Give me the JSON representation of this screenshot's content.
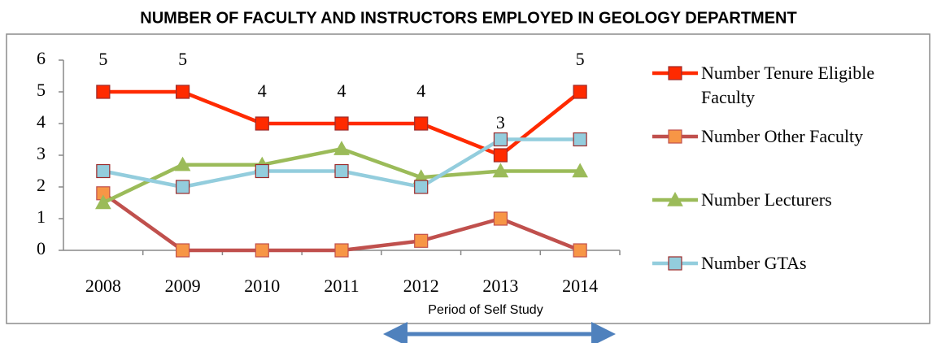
{
  "chart_data": {
    "type": "line",
    "title": "NUMBER OF FACULTY AND INSTRUCTORS EMPLOYED IN GEOLOGY DEPARTMENT",
    "categories": [
      "2008",
      "2009",
      "2010",
      "2011",
      "2012",
      "2013",
      "2014"
    ],
    "series": [
      {
        "name": "Number Tenure Eligible Faculty",
        "color": "#ff2a00",
        "marker": "square",
        "marker_color": "#ff2a00",
        "values": [
          5,
          5,
          4,
          4,
          4,
          3,
          5
        ],
        "data_labels": true
      },
      {
        "name": "Number Other Faculty",
        "color": "#c0504d",
        "marker": "square",
        "marker_color": "#f79646",
        "values": [
          1.8,
          0,
          0,
          0,
          0.3,
          1,
          0
        ]
      },
      {
        "name": "Number Lecturers",
        "color": "#9bbb59",
        "marker": "triangle",
        "marker_color": "#9bbb59",
        "values": [
          1.5,
          2.7,
          2.7,
          3.2,
          2.3,
          2.5,
          2.5
        ]
      },
      {
        "name": "Number GTAs",
        "color": "#93cddd",
        "marker": "square",
        "marker_color": "#93cddd",
        "values": [
          2.5,
          2,
          2.5,
          2.5,
          2,
          3.5,
          3.5
        ]
      }
    ],
    "ylim": [
      0,
      6
    ],
    "yticks": [
      0,
      1,
      2,
      3,
      4,
      5,
      6
    ],
    "grid": false,
    "legend": "right",
    "annotation": "Period of Self Study"
  }
}
